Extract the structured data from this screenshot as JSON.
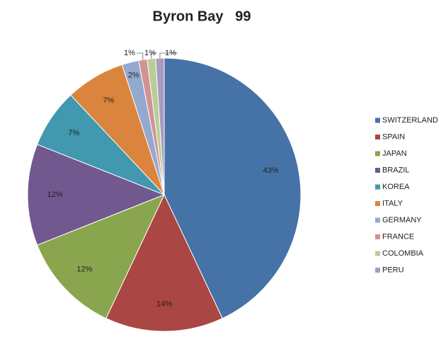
{
  "chart_data": {
    "type": "pie",
    "title": "Byron Bay   99",
    "categories": [
      "SWITZERLAND",
      "SPAIN",
      "JAPAN",
      "BRAZIL",
      "KOREA",
      "ITALY",
      "GERMANY",
      "FRANCE",
      "COLOMBIA",
      "PERU"
    ],
    "values": [
      43,
      14,
      12,
      12,
      7,
      7,
      2,
      1,
      1,
      1
    ],
    "value_labels": [
      "43%",
      "14%",
      "12%",
      "12%",
      "7%",
      "7%",
      "2%",
      "1%",
      "1%",
      "1%"
    ],
    "colors": [
      "#4572a7",
      "#aa4643",
      "#89a54e",
      "#71588f",
      "#4198af",
      "#db843d",
      "#93a9cf",
      "#d19392",
      "#b9cd96",
      "#a99bbd"
    ],
    "legend": "right"
  }
}
